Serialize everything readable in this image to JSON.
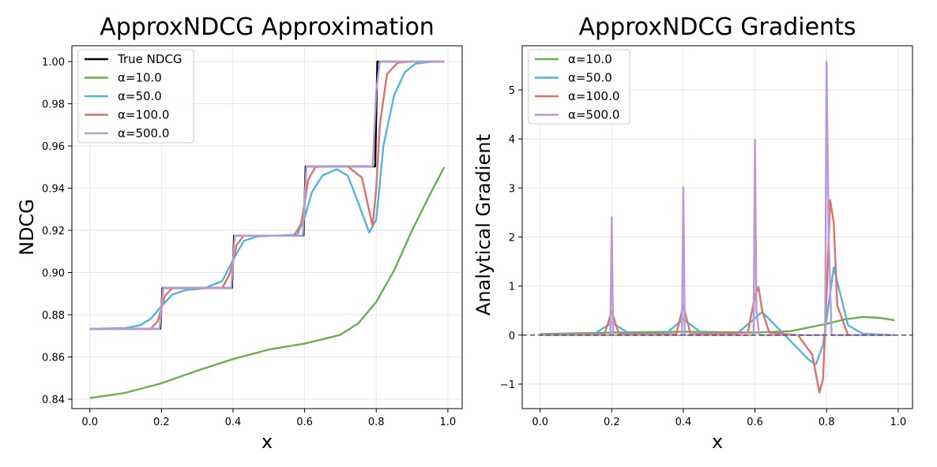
{
  "chart_data": [
    {
      "type": "line",
      "title": "ApproxNDCG Approximation",
      "xlabel": "x",
      "ylabel": "NDCG",
      "xlim": [
        -0.05,
        1.04
      ],
      "ylim": [
        0.8355,
        1.0075
      ],
      "xticks": [
        0.0,
        0.2,
        0.4,
        0.6,
        0.8,
        1.0
      ],
      "xtick_labels": [
        "0.0",
        "0.2",
        "0.4",
        "0.6",
        "0.8",
        "1.0"
      ],
      "yticks": [
        0.84,
        0.86,
        0.88,
        0.9,
        0.92,
        0.94,
        0.96,
        0.98,
        1.0
      ],
      "ytick_labels": [
        "0.84",
        "0.86",
        "0.88",
        "0.90",
        "0.92",
        "0.94",
        "0.96",
        "0.98",
        "1.00"
      ],
      "grid": true,
      "legend": "top-left",
      "series": [
        {
          "name": "True NDCG",
          "color": "#000000",
          "x": [
            0.0,
            0.197,
            0.203,
            0.397,
            0.403,
            0.597,
            0.603,
            0.797,
            0.803,
            0.99
          ],
          "y": [
            0.8733,
            0.8733,
            0.8927,
            0.8927,
            0.9175,
            0.9175,
            0.9503,
            0.9503,
            1.0,
            1.0
          ]
        },
        {
          "name": "α=10.0",
          "color": "#6ab04c",
          "x": [
            0.0,
            0.1,
            0.2,
            0.3,
            0.4,
            0.5,
            0.6,
            0.7,
            0.75,
            0.8,
            0.85,
            0.9,
            0.95,
            0.99
          ],
          "y": [
            0.8405,
            0.843,
            0.8475,
            0.8535,
            0.859,
            0.8635,
            0.8663,
            0.8705,
            0.876,
            0.886,
            0.901,
            0.92,
            0.937,
            0.95
          ]
        },
        {
          "name": "α=50.0",
          "color": "#4cb8e0",
          "x": [
            0.0,
            0.1,
            0.14,
            0.17,
            0.2,
            0.23,
            0.27,
            0.32,
            0.37,
            0.4,
            0.43,
            0.47,
            0.52,
            0.58,
            0.6,
            0.62,
            0.65,
            0.69,
            0.72,
            0.75,
            0.78,
            0.8,
            0.82,
            0.85,
            0.88,
            0.91,
            0.95,
            0.99
          ],
          "y": [
            0.8733,
            0.8737,
            0.875,
            0.878,
            0.884,
            0.8895,
            0.8918,
            0.8925,
            0.896,
            0.906,
            0.915,
            0.9172,
            0.9175,
            0.918,
            0.926,
            0.938,
            0.946,
            0.949,
            0.946,
            0.933,
            0.919,
            0.925,
            0.96,
            0.984,
            0.995,
            0.999,
            0.9998,
            1.0
          ]
        },
        {
          "name": "α=100.0",
          "color": "#e07068",
          "x": [
            0.0,
            0.17,
            0.19,
            0.2,
            0.21,
            0.23,
            0.37,
            0.39,
            0.4,
            0.41,
            0.43,
            0.57,
            0.59,
            0.6,
            0.61,
            0.63,
            0.66,
            0.72,
            0.76,
            0.79,
            0.8,
            0.81,
            0.83,
            0.86,
            0.9,
            0.99
          ],
          "y": [
            0.8733,
            0.8733,
            0.877,
            0.883,
            0.889,
            0.8925,
            0.8927,
            0.899,
            0.905,
            0.913,
            0.9175,
            0.9175,
            0.923,
            0.933,
            0.944,
            0.95,
            0.9503,
            0.9503,
            0.945,
            0.922,
            0.94,
            0.97,
            0.994,
            0.9995,
            1.0,
            1.0
          ]
        },
        {
          "name": "α=500.0",
          "color": "#b89ad8",
          "x": [
            0.0,
            0.195,
            0.205,
            0.395,
            0.405,
            0.595,
            0.605,
            0.79,
            0.8,
            0.81,
            0.99
          ],
          "y": [
            0.8733,
            0.8733,
            0.8927,
            0.8927,
            0.9175,
            0.9175,
            0.9503,
            0.9503,
            0.986,
            1.0,
            1.0
          ]
        }
      ]
    },
    {
      "type": "line",
      "title": "ApproxNDCG Gradients",
      "xlabel": "x",
      "ylabel": "Analytical Gradient",
      "xlim": [
        -0.05,
        1.04
      ],
      "ylim": [
        -1.5,
        5.9
      ],
      "xticks": [
        0.0,
        0.2,
        0.4,
        0.6,
        0.8,
        1.0
      ],
      "xtick_labels": [
        "0.0",
        "0.2",
        "0.4",
        "0.6",
        "0.8",
        "1.0"
      ],
      "yticks": [
        -1,
        0,
        1,
        2,
        3,
        4,
        5
      ],
      "ytick_labels": [
        "−1",
        "0",
        "1",
        "2",
        "3",
        "4",
        "5"
      ],
      "grid": true,
      "legend": "top-left",
      "reference_line": {
        "y": 0,
        "style": "dashed"
      },
      "series": [
        {
          "name": "α=10.0",
          "color": "#6ab04c",
          "x": [
            0.0,
            0.2,
            0.4,
            0.6,
            0.7,
            0.8,
            0.85,
            0.9,
            0.95,
            0.99
          ],
          "y": [
            0.02,
            0.05,
            0.07,
            0.05,
            0.08,
            0.23,
            0.32,
            0.37,
            0.35,
            0.3
          ]
        },
        {
          "name": "α=50.0",
          "color": "#4cb8e0",
          "x": [
            0.0,
            0.15,
            0.2,
            0.25,
            0.35,
            0.4,
            0.45,
            0.55,
            0.62,
            0.67,
            0.71,
            0.75,
            0.77,
            0.79,
            0.82,
            0.86,
            0.9,
            0.99
          ],
          "y": [
            0.0,
            0.02,
            0.25,
            0.03,
            0.03,
            0.32,
            0.05,
            0.03,
            0.47,
            0.1,
            -0.2,
            -0.5,
            -0.6,
            -0.2,
            1.38,
            0.2,
            0.03,
            0.0
          ]
        },
        {
          "name": "α=100.0",
          "color": "#e07068",
          "x": [
            0.0,
            0.18,
            0.2,
            0.22,
            0.38,
            0.4,
            0.42,
            0.58,
            0.6,
            0.61,
            0.62,
            0.64,
            0.72,
            0.76,
            0.78,
            0.79,
            0.8,
            0.81,
            0.82,
            0.83,
            0.86,
            0.99
          ],
          "y": [
            0.0,
            0.02,
            0.48,
            0.02,
            0.02,
            0.6,
            0.02,
            0.05,
            0.8,
            0.98,
            0.5,
            0.05,
            0.0,
            -0.4,
            -1.17,
            -0.9,
            0.8,
            2.75,
            2.3,
            0.6,
            0.0,
            0.0
          ]
        },
        {
          "name": "α=500.0",
          "color": "#b89ad8",
          "x": [
            0.0,
            0.196,
            0.2,
            0.204,
            0.396,
            0.4,
            0.404,
            0.596,
            0.6,
            0.604,
            0.612,
            0.79,
            0.796,
            0.8,
            0.806,
            0.814,
            0.99
          ],
          "y": [
            0.0,
            0.0,
            2.4,
            0.0,
            0.0,
            3.01,
            0.0,
            0.0,
            3.98,
            0.5,
            0.0,
            0.0,
            0.0,
            5.57,
            2.0,
            0.0,
            0.0
          ]
        }
      ]
    }
  ]
}
